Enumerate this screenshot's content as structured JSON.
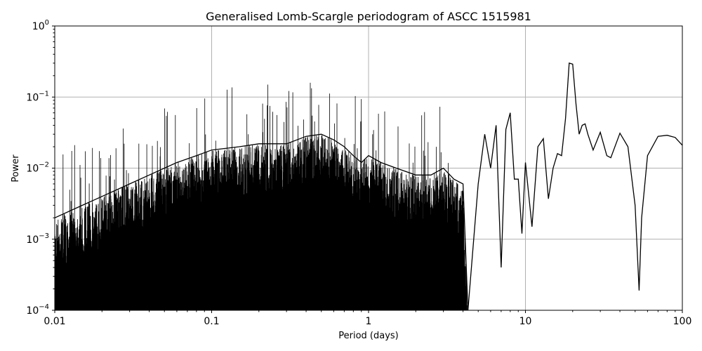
{
  "chart_data": {
    "type": "line",
    "title": "Generalised Lomb-Scargle periodogram of ASCC 1515981",
    "xlabel": "Period (days)",
    "ylabel": "Power",
    "xscale": "log",
    "yscale": "log",
    "xlim": [
      0.01,
      100
    ],
    "ylim": [
      0.0001,
      1
    ],
    "grid": true,
    "x_ticks": [
      {
        "value": 0.01,
        "label": "0.01"
      },
      {
        "value": 0.1,
        "label": "0.1"
      },
      {
        "value": 1,
        "label": "1"
      },
      {
        "value": 10,
        "label": "10"
      },
      {
        "value": 100,
        "label": "100"
      }
    ],
    "y_ticks": [
      {
        "value": 0.0001,
        "base": "10",
        "exp": "−4"
      },
      {
        "value": 0.001,
        "base": "10",
        "exp": "−3"
      },
      {
        "value": 0.01,
        "base": "10",
        "exp": "−2"
      },
      {
        "value": 0.1,
        "base": "10",
        "exp": "−1"
      },
      {
        "value": 1,
        "base": "10",
        "exp": "0"
      }
    ],
    "series": [
      {
        "color": "#000000",
        "x": [
          0.01,
          0.015,
          0.02,
          0.03,
          0.04,
          0.06,
          0.08,
          0.1,
          0.15,
          0.2,
          0.3,
          0.35,
          0.4,
          0.5,
          0.6,
          0.7,
          0.8,
          0.9,
          1.0,
          1.2,
          1.5,
          2.0,
          2.5,
          3.0,
          3.5,
          4.0,
          4.3,
          5.0,
          5.5,
          6.0,
          6.5,
          7.0,
          7.5,
          8.0,
          8.5,
          9.0,
          9.5,
          10,
          11,
          12,
          13,
          14,
          15,
          16,
          17,
          18,
          19,
          20,
          21,
          22,
          23,
          24,
          25,
          27,
          30,
          33,
          35,
          40,
          45,
          50,
          53,
          55,
          60,
          70,
          80,
          90,
          100
        ],
        "y": [
          0.002,
          0.003,
          0.004,
          0.006,
          0.008,
          0.012,
          0.015,
          0.018,
          0.02,
          0.022,
          0.022,
          0.025,
          0.028,
          0.03,
          0.025,
          0.02,
          0.015,
          0.012,
          0.015,
          0.012,
          0.01,
          0.008,
          0.008,
          0.01,
          0.007,
          0.006,
          0.0001,
          0.006,
          0.03,
          0.01,
          0.04,
          0.0004,
          0.035,
          0.06,
          0.007,
          0.007,
          0.0012,
          0.012,
          0.0015,
          0.02,
          0.026,
          0.0037,
          0.01,
          0.016,
          0.015,
          0.05,
          0.3,
          0.29,
          0.08,
          0.03,
          0.04,
          0.042,
          0.03,
          0.018,
          0.032,
          0.015,
          0.014,
          0.031,
          0.02,
          0.003,
          0.00019,
          0.002,
          0.015,
          0.028,
          0.029,
          0.027,
          0.021
        ]
      }
    ]
  }
}
